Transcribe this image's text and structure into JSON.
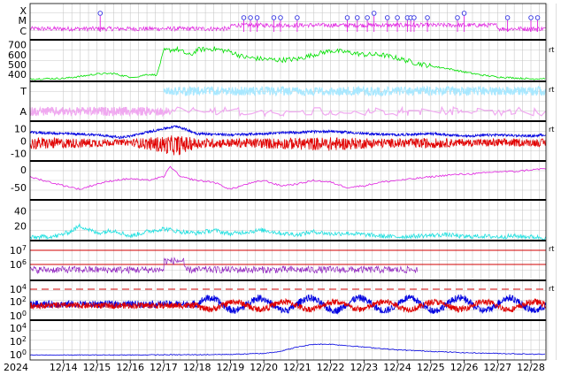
{
  "chart_data": {
    "type": "line",
    "x_start_label": "2024",
    "x_ticks": [
      "12/14",
      "12/15",
      "12/16",
      "12/17",
      "12/18",
      "12/19",
      "12/20",
      "12/21",
      "12/22",
      "12/23",
      "12/24",
      "12/25",
      "12/26",
      "12/27",
      "12/28"
    ],
    "panels": [
      {
        "id": "flares",
        "y_labels": [
          "X",
          "M",
          "C"
        ],
        "series": [
          {
            "color": "#e020e0",
            "kind": "flux"
          }
        ],
        "flare_markers": [
          {
            "day": 15.1,
            "level": "X"
          },
          {
            "day": 19.4,
            "level": "M"
          },
          {
            "day": 19.6,
            "level": "M"
          },
          {
            "day": 19.8,
            "level": "M"
          },
          {
            "day": 20.3,
            "level": "M"
          },
          {
            "day": 20.5,
            "level": "M"
          },
          {
            "day": 21.0,
            "level": "M"
          },
          {
            "day": 22.5,
            "level": "M"
          },
          {
            "day": 22.8,
            "level": "M"
          },
          {
            "day": 23.1,
            "level": "M"
          },
          {
            "day": 23.3,
            "level": "X"
          },
          {
            "day": 23.7,
            "level": "M"
          },
          {
            "day": 24.0,
            "level": "M"
          },
          {
            "day": 24.3,
            "level": "M"
          },
          {
            "day": 24.4,
            "level": "M"
          },
          {
            "day": 24.5,
            "level": "M"
          },
          {
            "day": 24.9,
            "level": "M"
          },
          {
            "day": 25.8,
            "level": "M"
          },
          {
            "day": 26.0,
            "level": "X"
          },
          {
            "day": 27.3,
            "level": "M"
          },
          {
            "day": 28.0,
            "level": "M"
          },
          {
            "day": 28.2,
            "level": "M"
          }
        ]
      },
      {
        "id": "wind_speed",
        "y_ticks": [
          400,
          500,
          600,
          700
        ],
        "ylim": [
          330,
          750
        ],
        "series": [
          {
            "color": "#00e000"
          }
        ],
        "right_label": "rt",
        "points": [
          [
            13.0,
            355
          ],
          [
            14.0,
            360
          ],
          [
            14.5,
            380
          ],
          [
            15.0,
            405
          ],
          [
            15.5,
            410
          ],
          [
            15.8,
            385
          ],
          [
            16.1,
            370
          ],
          [
            16.5,
            400
          ],
          [
            16.8,
            395
          ],
          [
            17.0,
            640
          ],
          [
            17.4,
            655
          ],
          [
            17.8,
            590
          ],
          [
            18.0,
            650
          ],
          [
            18.5,
            660
          ],
          [
            19.0,
            630
          ],
          [
            19.4,
            575
          ],
          [
            20.0,
            555
          ],
          [
            20.5,
            545
          ],
          [
            21.0,
            555
          ],
          [
            21.5,
            600
          ],
          [
            22.0,
            640
          ],
          [
            22.5,
            625
          ],
          [
            23.0,
            600
          ],
          [
            23.5,
            600
          ],
          [
            24.0,
            565
          ],
          [
            24.5,
            520
          ],
          [
            25.0,
            485
          ],
          [
            25.5,
            460
          ],
          [
            26.0,
            425
          ],
          [
            26.5,
            395
          ],
          [
            27.0,
            375
          ],
          [
            27.5,
            365
          ],
          [
            28.0,
            355
          ],
          [
            28.4,
            360
          ]
        ]
      },
      {
        "id": "composition",
        "y_labels": [
          "T",
          "A"
        ],
        "series": [
          {
            "color": "#a8e8ff",
            "name": "T"
          },
          {
            "color": "#f0a8f0",
            "name": "A"
          }
        ],
        "right_label": "rt"
      },
      {
        "id": "bfield",
        "y_ticks": [
          10,
          0,
          -10
        ],
        "ylim": [
          -16,
          16
        ],
        "series": [
          {
            "color": "#0000e0",
            "name": "Bt"
          },
          {
            "color": "#e00000",
            "name": "Bz"
          }
        ],
        "right_label": "rt",
        "bt_points": [
          [
            13.0,
            7
          ],
          [
            14.0,
            6
          ],
          [
            15.0,
            5
          ],
          [
            15.7,
            3
          ],
          [
            16.0,
            4
          ],
          [
            17.0,
            10
          ],
          [
            17.4,
            12
          ],
          [
            18.0,
            6
          ],
          [
            19.0,
            5
          ],
          [
            20.0,
            6
          ],
          [
            21.0,
            7
          ],
          [
            22.0,
            8
          ],
          [
            23.0,
            6
          ],
          [
            24.0,
            5
          ],
          [
            25.0,
            6
          ],
          [
            26.0,
            4
          ],
          [
            27.0,
            5
          ],
          [
            28.0,
            4
          ],
          [
            28.4,
            5
          ]
        ]
      },
      {
        "id": "dst",
        "y_ticks": [
          0,
          -50
        ],
        "ylim": [
          -85,
          25
        ],
        "series": [
          {
            "color": "#e020e0"
          }
        ],
        "points": [
          [
            13.0,
            -20
          ],
          [
            13.8,
            -40
          ],
          [
            14.5,
            -55
          ],
          [
            15.0,
            -40
          ],
          [
            15.5,
            -30
          ],
          [
            16.0,
            -25
          ],
          [
            16.5,
            -30
          ],
          [
            17.0,
            -20
          ],
          [
            17.2,
            10
          ],
          [
            17.5,
            -20
          ],
          [
            18.0,
            -30
          ],
          [
            18.5,
            -35
          ],
          [
            19.0,
            -55
          ],
          [
            19.5,
            -40
          ],
          [
            20.0,
            -30
          ],
          [
            20.5,
            -45
          ],
          [
            21.0,
            -40
          ],
          [
            21.5,
            -30
          ],
          [
            22.0,
            -35
          ],
          [
            22.5,
            -50
          ],
          [
            23.0,
            -45
          ],
          [
            23.5,
            -35
          ],
          [
            24.0,
            -30
          ],
          [
            24.5,
            -25
          ],
          [
            25.0,
            -20
          ],
          [
            25.5,
            -15
          ],
          [
            26.0,
            -12
          ],
          [
            26.5,
            -10
          ],
          [
            27.0,
            -5
          ],
          [
            27.5,
            -5
          ],
          [
            28.0,
            0
          ],
          [
            28.4,
            3
          ]
        ]
      },
      {
        "id": "ae",
        "y_ticks": [
          20,
          40
        ],
        "ylim": [
          0,
          55
        ],
        "series": [
          {
            "color": "#20e0e0"
          }
        ],
        "points": [
          [
            13.0,
            4
          ],
          [
            13.8,
            6
          ],
          [
            14.2,
            12
          ],
          [
            14.5,
            20
          ],
          [
            15.0,
            10
          ],
          [
            15.5,
            14
          ],
          [
            16.0,
            6
          ],
          [
            16.5,
            12
          ],
          [
            17.0,
            16
          ],
          [
            17.5,
            12
          ],
          [
            18.0,
            10
          ],
          [
            18.5,
            14
          ],
          [
            19.0,
            9
          ],
          [
            19.5,
            12
          ],
          [
            20.0,
            14
          ],
          [
            20.5,
            10
          ],
          [
            21.0,
            8
          ],
          [
            21.5,
            12
          ],
          [
            22.0,
            9
          ],
          [
            22.5,
            10
          ],
          [
            23.0,
            8
          ],
          [
            23.5,
            6
          ],
          [
            24.0,
            5
          ],
          [
            24.5,
            6
          ],
          [
            25.0,
            7
          ],
          [
            25.5,
            8
          ],
          [
            26.0,
            5
          ],
          [
            26.5,
            6
          ],
          [
            27.0,
            5
          ],
          [
            27.5,
            6
          ],
          [
            28.0,
            5
          ],
          [
            28.4,
            4
          ]
        ]
      },
      {
        "id": "proton_flux",
        "y_ticks": [
          "10^6",
          "10^7"
        ],
        "series": [
          {
            "color": "#9020c0"
          }
        ],
        "reference_lines": [
          {
            "color": "#d00000"
          },
          {
            "color": "#d00000"
          }
        ],
        "right_label": "rt"
      },
      {
        "id": "xray_flux",
        "y_ticks": [
          "10^0",
          "10^2",
          "10^4"
        ],
        "series": [
          {
            "color": "#0000e0"
          },
          {
            "color": "#e00000"
          }
        ],
        "reference_lines": [
          {
            "color": "#d00000",
            "style": "dashed"
          }
        ],
        "right_label": "rt"
      },
      {
        "id": "density",
        "y_ticks": [
          "10^0",
          "10^2",
          "10^4"
        ],
        "series": [
          {
            "color": "#0000e0"
          }
        ],
        "points": [
          [
            13.0,
            0.3
          ],
          [
            16.0,
            0.4
          ],
          [
            18.0,
            0.6
          ],
          [
            19.0,
            0.8
          ],
          [
            20.0,
            1.5
          ],
          [
            20.5,
            3
          ],
          [
            21.0,
            6
          ],
          [
            21.5,
            8
          ],
          [
            22.0,
            8
          ],
          [
            22.5,
            7
          ],
          [
            23.0,
            6
          ],
          [
            24.0,
            4
          ],
          [
            25.0,
            3
          ],
          [
            26.0,
            2
          ],
          [
            27.0,
            1.5
          ],
          [
            28.0,
            1
          ],
          [
            28.4,
            0.9
          ]
        ]
      }
    ]
  }
}
